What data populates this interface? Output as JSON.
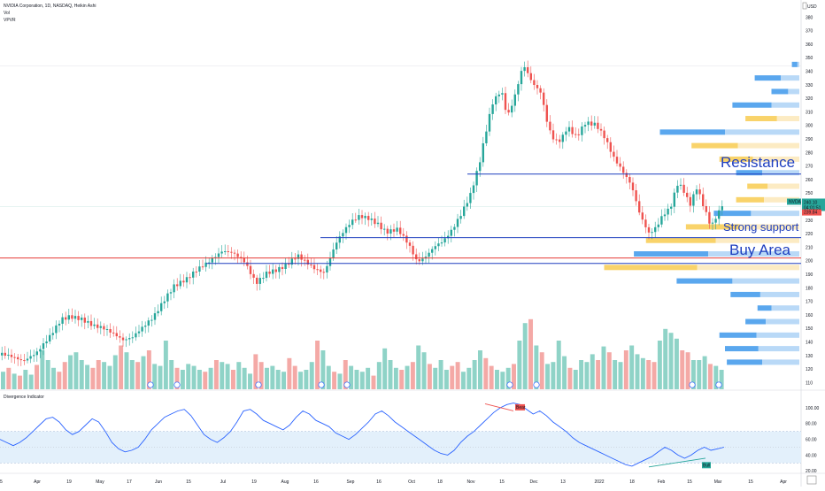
{
  "header": {
    "title": "NVIDIA Corporation, 1D, NASDAQ, Heikin Ashi",
    "vol_label": "Vol",
    "vpvr_label": "VPVR",
    "currency": "USD"
  },
  "chart_data": [
    {
      "type": "candlestick",
      "title": "NVIDIA Corporation, 1D, NASDAQ, Heikin Ashi",
      "ylim": [
        105,
        390
      ],
      "y_ticks": [
        110,
        120,
        130,
        140,
        150,
        160,
        170,
        180,
        190,
        200,
        210,
        220,
        230,
        240,
        250,
        260,
        270,
        280,
        290,
        300,
        310,
        320,
        330,
        340,
        350,
        360,
        370,
        380
      ],
      "x_tick_labels": [
        "5",
        "Apr",
        "19",
        "May",
        "17",
        "Jun",
        "15",
        "Jul",
        "19",
        "Aug",
        "16",
        "Sep",
        "16",
        "Oct",
        "18",
        "Nov",
        "15",
        "Dec",
        "13",
        "2022",
        "18",
        "Feb",
        "15",
        "Mar",
        "15",
        "Apr"
      ],
      "price_path": [
        [
          0,
          130
        ],
        [
          12,
          128
        ],
        [
          25,
          125
        ],
        [
          40,
          132
        ],
        [
          55,
          145
        ],
        [
          68,
          158
        ],
        [
          78,
          160
        ],
        [
          90,
          158
        ],
        [
          105,
          152
        ],
        [
          115,
          150
        ],
        [
          125,
          146
        ],
        [
          138,
          140
        ],
        [
          148,
          142
        ],
        [
          160,
          150
        ],
        [
          172,
          158
        ],
        [
          185,
          172
        ],
        [
          195,
          182
        ],
        [
          210,
          188
        ],
        [
          222,
          195
        ],
        [
          235,
          200
        ],
        [
          250,
          207
        ],
        [
          262,
          205
        ],
        [
          275,
          198
        ],
        [
          288,
          182
        ],
        [
          300,
          190
        ],
        [
          312,
          193
        ],
        [
          322,
          197
        ],
        [
          335,
          205
        ],
        [
          345,
          200
        ],
        [
          355,
          195
        ],
        [
          365,
          192
        ],
        [
          372,
          203
        ],
        [
          378,
          213
        ],
        [
          385,
          220
        ],
        [
          395,
          228
        ],
        [
          405,
          232
        ],
        [
          415,
          230
        ],
        [
          425,
          226
        ],
        [
          435,
          220
        ],
        [
          448,
          223
        ],
        [
          460,
          213
        ],
        [
          470,
          200
        ],
        [
          478,
          203
        ],
        [
          490,
          212
        ],
        [
          500,
          216
        ],
        [
          510,
          224
        ],
        [
          520,
          235
        ],
        [
          530,
          248
        ],
        [
          540,
          270
        ],
        [
          548,
          295
        ],
        [
          555,
          315
        ],
        [
          565,
          325
        ],
        [
          572,
          305
        ],
        [
          580,
          320
        ],
        [
          590,
          345
        ],
        [
          600,
          332
        ],
        [
          610,
          325
        ],
        [
          618,
          300
        ],
        [
          625,
          290
        ],
        [
          632,
          290
        ],
        [
          640,
          300
        ],
        [
          650,
          292
        ],
        [
          660,
          302
        ],
        [
          672,
          300
        ],
        [
          682,
          290
        ],
        [
          692,
          275
        ],
        [
          702,
          265
        ],
        [
          712,
          255
        ],
        [
          722,
          233
        ],
        [
          732,
          220
        ],
        [
          740,
          225
        ],
        [
          748,
          235
        ],
        [
          756,
          240
        ],
        [
          764,
          258
        ],
        [
          770,
          255
        ],
        [
          778,
          242
        ],
        [
          786,
          255
        ],
        [
          794,
          240
        ],
        [
          802,
          225
        ],
        [
          808,
          232
        ],
        [
          814,
          240
        ],
        [
          818,
          240
        ]
      ],
      "current_price": {
        "label": "NVDA",
        "value": "240.10",
        "countdown": "04:01:51"
      },
      "reference_price": "239.84",
      "levels": [
        {
          "name": "Resistance",
          "price": 264,
          "label": "Resistance",
          "color": "#1f3fbf"
        },
        {
          "name": "Strong support",
          "price": 217,
          "label": "Strong support",
          "color": "#1f3fbf"
        },
        {
          "name": "Buy Area",
          "price": 198,
          "label": "Buy Area",
          "color": "#1f3fbf"
        },
        {
          "name": "Red line",
          "price": 202,
          "label": "",
          "color": "#e53935"
        }
      ]
    },
    {
      "type": "bar",
      "name": "Vol",
      "values": [
        18,
        22,
        16,
        14,
        20,
        15,
        25,
        40,
        30,
        22,
        18,
        28,
        35,
        38,
        30,
        25,
        22,
        30,
        28,
        24,
        35,
        45,
        38,
        30,
        28,
        34,
        40,
        26,
        24,
        50,
        30,
        22,
        20,
        26,
        24,
        20,
        18,
        22,
        30,
        28,
        26,
        20,
        28,
        22,
        16,
        36,
        28,
        22,
        24,
        20,
        18,
        32,
        24,
        18,
        20,
        28,
        50,
        40,
        24,
        18,
        16,
        30,
        24,
        20,
        18,
        22,
        14,
        28,
        42,
        30,
        22,
        20,
        24,
        28,
        45,
        38,
        26,
        22,
        30,
        20,
        24,
        28,
        18,
        22,
        30,
        40,
        32,
        24,
        20,
        18,
        22,
        26,
        50,
        68,
        72,
        45,
        38,
        26,
        28,
        50,
        34,
        22,
        20,
        30,
        28,
        36,
        30,
        44,
        38,
        30,
        28,
        40,
        45,
        36,
        32,
        30,
        28,
        50,
        62,
        58,
        52,
        40,
        38,
        30,
        30,
        34,
        26,
        24,
        20
      ]
    },
    {
      "type": "bar",
      "name": "VPVR",
      "orientation": "horizontal",
      "price_bins": [
        345,
        335,
        325,
        315,
        305,
        295,
        285,
        275,
        265,
        255,
        245,
        235,
        225,
        215,
        205,
        195,
        185,
        175,
        165,
        155,
        145,
        135,
        125
      ],
      "up_volume": [
        6,
        28,
        18,
        42,
        34,
        70,
        50,
        36,
        28,
        22,
        30,
        40,
        58,
        75,
        80,
        100,
        60,
        32,
        15,
        22,
        40,
        36,
        38
      ],
      "down_volume": [
        2,
        20,
        12,
        30,
        24,
        80,
        66,
        50,
        40,
        34,
        38,
        52,
        64,
        90,
        98,
        110,
        72,
        42,
        30,
        36,
        46,
        44,
        40
      ],
      "price_ticks_visible": true
    },
    {
      "type": "line",
      "name": "Divergence Indicator",
      "title": "Divergence Indicator",
      "ylim": [
        18,
        110
      ],
      "y_ticks": [
        20,
        40,
        60,
        80,
        100
      ],
      "values": [
        60,
        56,
        52,
        56,
        62,
        70,
        78,
        86,
        88,
        82,
        72,
        66,
        70,
        78,
        86,
        82,
        70,
        56,
        48,
        44,
        46,
        50,
        60,
        72,
        80,
        88,
        92,
        96,
        98,
        90,
        78,
        66,
        60,
        56,
        62,
        70,
        82,
        96,
        98,
        92,
        84,
        80,
        76,
        72,
        78,
        88,
        96,
        92,
        84,
        80,
        76,
        68,
        64,
        60,
        66,
        74,
        82,
        92,
        96,
        90,
        82,
        76,
        70,
        64,
        58,
        52,
        46,
        42,
        40,
        46,
        56,
        64,
        70,
        78,
        86,
        94,
        100,
        104,
        106,
        104,
        98,
        92,
        96,
        90,
        82,
        76,
        70,
        62,
        56,
        52,
        48,
        44,
        40,
        36,
        32,
        28,
        26,
        30,
        34,
        38,
        44,
        50,
        46,
        40,
        36,
        40,
        46,
        50,
        46,
        48,
        50
      ]
    }
  ],
  "annotations": {
    "resistance": "Resistance",
    "strong_support": "Strong support",
    "buy_area": "Buy Area",
    "bear_tag": "Bear",
    "bull_tag": "Bull"
  },
  "colors": {
    "up": "#26a69a",
    "down": "#ef5350",
    "vol_up": "#8fd3c7",
    "vol_down": "#f4a9a6",
    "vpvr_up_blue": "#5aa7ee",
    "vpvr_down_blue": "#b9d9f7",
    "vpvr_up_gold": "#f9d36a",
    "vpvr_down_gold": "#fcebc3",
    "osc_line": "#2962ff",
    "osc_band": "#e3f0fb",
    "annot": "#1f3fbf"
  }
}
